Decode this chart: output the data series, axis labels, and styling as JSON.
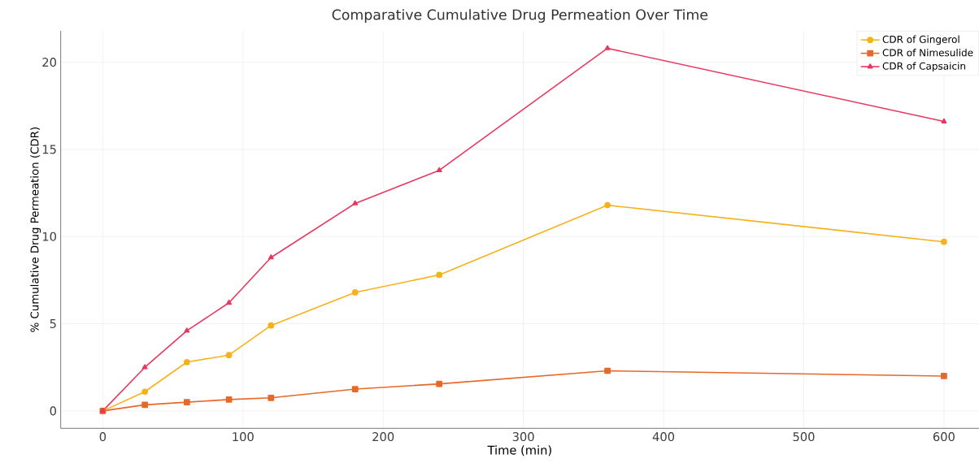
{
  "chart_data": {
    "type": "line",
    "title": "Comparative Cumulative Drug Permeation Over Time",
    "xlabel": "Time (min)",
    "ylabel": "% Cumulative Drug Permeation (CDR)",
    "x": [
      0,
      30,
      60,
      90,
      120,
      180,
      240,
      360,
      600
    ],
    "series": [
      {
        "name": "CDR of Gingerol",
        "color": "#f5b21b",
        "marker": "circle",
        "values": [
          0,
          1.1,
          2.8,
          3.2,
          4.9,
          6.8,
          7.8,
          11.8,
          9.7
        ]
      },
      {
        "name": "CDR of Nimesulide",
        "color": "#e8672a",
        "marker": "square",
        "values": [
          0,
          0.35,
          0.5,
          0.65,
          0.75,
          1.25,
          1.55,
          2.3,
          2.0
        ]
      },
      {
        "name": "CDR of Capsaicin",
        "color": "#e8385f",
        "marker": "triangle",
        "values": [
          0,
          2.5,
          4.6,
          6.2,
          8.8,
          11.9,
          13.8,
          20.8,
          16.6
        ]
      }
    ],
    "xlim": [
      -30,
      625
    ],
    "ylim": [
      -1,
      21.8
    ],
    "xticks": [
      0,
      100,
      200,
      300,
      400,
      500,
      600
    ],
    "yticks": [
      0,
      5,
      10,
      15,
      20
    ],
    "grid": true,
    "legend": "top right",
    "line_style": "solid"
  }
}
